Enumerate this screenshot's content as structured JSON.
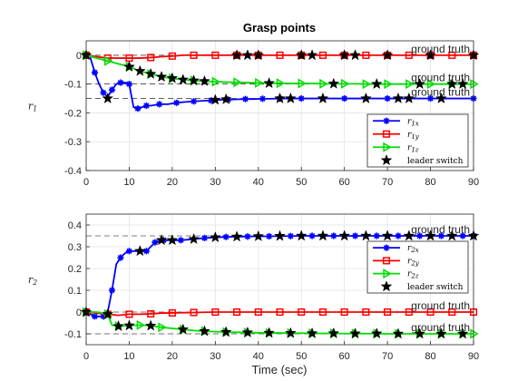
{
  "chart_data": [
    {
      "type": "line",
      "title": "Grasp points",
      "ylabel": "r1",
      "ylabel_main": "r",
      "ylabel_sub": "1",
      "xlabel": "",
      "xlim": [
        0,
        90
      ],
      "ylim": [
        -0.4,
        0.05
      ],
      "xticks": [
        0,
        10,
        20,
        30,
        40,
        50,
        60,
        70,
        80,
        90
      ],
      "yticks": [
        0,
        -0.1,
        -0.2,
        -0.3,
        -0.4
      ],
      "ytick_labels": [
        "0",
        "-0.1",
        "-0.2",
        "-0.3",
        "-0.4"
      ],
      "grid": true,
      "legend_position": "bottom-right",
      "reference_lines": [
        {
          "y": 0,
          "label": "ground truth"
        },
        {
          "y": -0.1,
          "label": "ground truth"
        },
        {
          "y": -0.15,
          "label": "ground truth"
        }
      ],
      "series": [
        {
          "name": "r1x",
          "legend_main": "r",
          "legend_sub": "1x",
          "color": "#0000ff",
          "marker": "asterisk",
          "x": [
            0,
            1,
            2,
            3,
            4,
            5,
            6,
            7,
            8,
            9,
            10,
            11,
            12,
            13,
            14,
            15,
            17,
            19,
            21,
            23,
            25,
            27,
            29,
            31,
            33,
            35,
            37,
            39,
            41,
            43,
            45,
            47,
            50,
            55,
            60,
            65,
            70,
            75,
            80,
            85,
            90
          ],
          "values": [
            0,
            -0.01,
            -0.06,
            -0.1,
            -0.13,
            -0.145,
            -0.12,
            -0.1,
            -0.095,
            -0.095,
            -0.1,
            -0.18,
            -0.185,
            -0.18,
            -0.175,
            -0.175,
            -0.17,
            -0.17,
            -0.165,
            -0.162,
            -0.16,
            -0.158,
            -0.157,
            -0.155,
            -0.154,
            -0.153,
            -0.152,
            -0.152,
            -0.151,
            -0.151,
            -0.15,
            -0.15,
            -0.15,
            -0.15,
            -0.15,
            -0.15,
            -0.15,
            -0.15,
            -0.15,
            -0.15,
            -0.15
          ]
        },
        {
          "name": "r1y",
          "legend_main": "r",
          "legend_sub": "1y",
          "color": "#ff0000",
          "marker": "square",
          "x": [
            0,
            2.5,
            5,
            7.5,
            10,
            12.5,
            15,
            17.5,
            20,
            22.5,
            25,
            27.5,
            30,
            32.5,
            35,
            37.5,
            40,
            42.5,
            45,
            47.5,
            50,
            52.5,
            55,
            57.5,
            60,
            62.5,
            65,
            67.5,
            70,
            72.5,
            75,
            77.5,
            80,
            82.5,
            85,
            87.5,
            90
          ],
          "values": [
            0,
            -0.005,
            -0.01,
            -0.01,
            -0.01,
            -0.01,
            -0.008,
            -0.005,
            -0.003,
            0,
            0,
            0,
            0,
            0,
            0,
            0,
            0,
            0,
            0,
            0,
            0,
            0,
            0,
            0,
            0,
            0,
            0,
            0,
            0,
            0,
            0,
            0,
            0,
            0,
            0,
            0,
            0
          ]
        },
        {
          "name": "r1z",
          "legend_main": "r",
          "legend_sub": "1z",
          "color": "#00dd00",
          "marker": "triangle-right",
          "x": [
            0,
            2.5,
            5,
            7.5,
            10,
            12.5,
            15,
            17.5,
            20,
            22.5,
            25,
            27.5,
            30,
            32.5,
            35,
            37.5,
            40,
            42.5,
            45,
            47.5,
            50,
            52.5,
            55,
            57.5,
            60,
            62.5,
            65,
            67.5,
            70,
            72.5,
            75,
            77.5,
            80,
            82.5,
            85,
            87.5,
            90
          ],
          "values": [
            0,
            -0.01,
            -0.02,
            -0.03,
            -0.04,
            -0.055,
            -0.065,
            -0.075,
            -0.08,
            -0.085,
            -0.088,
            -0.09,
            -0.092,
            -0.093,
            -0.094,
            -0.095,
            -0.096,
            -0.097,
            -0.097,
            -0.098,
            -0.098,
            -0.098,
            -0.099,
            -0.099,
            -0.099,
            -0.099,
            -0.1,
            -0.1,
            -0.1,
            -0.1,
            -0.1,
            -0.1,
            -0.1,
            -0.1,
            -0.1,
            -0.1,
            -0.1
          ]
        }
      ],
      "leader_switch": {
        "name": "leader switch",
        "x": [
          0,
          5,
          10,
          12.5,
          15,
          17.5,
          20,
          22.5,
          25,
          27.5,
          30,
          32.5,
          35,
          37.5,
          40,
          42.5,
          45,
          47.5,
          50,
          52.5,
          55,
          57.5,
          60,
          62.5,
          65,
          67.5,
          70,
          72.5,
          75,
          77.5,
          80,
          82.5,
          85,
          87.5,
          90
        ],
        "y": [
          0,
          -0.15,
          -0.04,
          -0.055,
          -0.065,
          -0.075,
          -0.08,
          -0.085,
          -0.088,
          -0.09,
          -0.155,
          -0.153,
          0,
          0,
          0,
          -0.097,
          -0.15,
          -0.15,
          0,
          0,
          -0.15,
          -0.099,
          0,
          0,
          -0.15,
          -0.1,
          0,
          -0.15,
          -0.15,
          -0.1,
          0,
          -0.15,
          -0.1,
          -0.1,
          0
        ]
      }
    },
    {
      "type": "line",
      "title": "",
      "ylabel": "r2",
      "ylabel_main": "r",
      "ylabel_sub": "2",
      "xlabel": "Time (sec)",
      "xlim": [
        0,
        90
      ],
      "ylim": [
        -0.15,
        0.45
      ],
      "xticks": [
        0,
        10,
        20,
        30,
        40,
        50,
        60,
        70,
        80,
        90
      ],
      "yticks": [
        0.4,
        0.3,
        0.2,
        0.1,
        0,
        -0.1
      ],
      "ytick_labels": [
        "0.4",
        "0.3",
        "0.2",
        "0.1",
        "0",
        "-0.1"
      ],
      "grid": true,
      "legend_position": "right",
      "reference_lines": [
        {
          "y": 0.35,
          "label": "ground truth"
        },
        {
          "y": 0,
          "label": "ground truth"
        },
        {
          "y": -0.1,
          "label": "ground truth"
        }
      ],
      "series": [
        {
          "name": "r2x",
          "legend_main": "r",
          "legend_sub": "2x",
          "color": "#0000ff",
          "marker": "asterisk",
          "x": [
            0,
            1,
            2,
            3,
            4,
            5,
            6,
            7,
            8,
            9,
            10,
            12,
            14,
            15,
            16,
            17,
            18,
            20,
            22,
            25,
            27.5,
            30,
            32.5,
            35,
            37.5,
            40,
            42.5,
            45,
            47.5,
            50,
            52.5,
            55,
            57.5,
            60,
            62.5,
            65,
            67.5,
            70,
            72.5,
            75,
            77.5,
            80,
            82.5,
            85,
            87.5,
            90
          ],
          "values": [
            0,
            -0.01,
            -0.02,
            -0.02,
            -0.02,
            0,
            0.1,
            0.22,
            0.25,
            0.27,
            0.28,
            0.28,
            0.28,
            0.3,
            0.32,
            0.325,
            0.33,
            0.33,
            0.33,
            0.335,
            0.34,
            0.343,
            0.345,
            0.346,
            0.347,
            0.348,
            0.348,
            0.349,
            0.349,
            0.35,
            0.35,
            0.35,
            0.35,
            0.35,
            0.35,
            0.35,
            0.35,
            0.35,
            0.35,
            0.35,
            0.35,
            0.35,
            0.35,
            0.35,
            0.35,
            0.35
          ]
        },
        {
          "name": "r2y",
          "legend_main": "r",
          "legend_sub": "2y",
          "color": "#ff0000",
          "marker": "square",
          "x": [
            0,
            2.5,
            5,
            7.5,
            10,
            12.5,
            15,
            17.5,
            20,
            22.5,
            25,
            27.5,
            30,
            32.5,
            35,
            37.5,
            40,
            42.5,
            45,
            47.5,
            50,
            52.5,
            55,
            57.5,
            60,
            62.5,
            65,
            67.5,
            70,
            72.5,
            75,
            77.5,
            80,
            82.5,
            85,
            87.5,
            90
          ],
          "values": [
            0,
            -0.005,
            -0.01,
            -0.015,
            -0.01,
            -0.01,
            -0.008,
            -0.005,
            -0.004,
            -0.003,
            -0.002,
            -0.001,
            0,
            0,
            0,
            0,
            0,
            0,
            0,
            0,
            0,
            0,
            0,
            0,
            0,
            0,
            0,
            0,
            0,
            0,
            0,
            0,
            0,
            0,
            0,
            0,
            0
          ]
        },
        {
          "name": "r2z",
          "legend_main": "r",
          "legend_sub": "2z",
          "color": "#00dd00",
          "marker": "triangle-right",
          "x": [
            0,
            2.5,
            5,
            6,
            7.5,
            10,
            12.5,
            15,
            17.5,
            20,
            22.5,
            25,
            27.5,
            30,
            32.5,
            35,
            37.5,
            40,
            42.5,
            45,
            47.5,
            50,
            52.5,
            55,
            57.5,
            60,
            62.5,
            65,
            67.5,
            70,
            72.5,
            75,
            77.5,
            80,
            82.5,
            85,
            87.5,
            90
          ],
          "values": [
            0,
            0,
            -0.01,
            -0.06,
            -0.065,
            -0.062,
            -0.06,
            -0.063,
            -0.07,
            -0.075,
            -0.08,
            -0.085,
            -0.088,
            -0.09,
            -0.092,
            -0.093,
            -0.094,
            -0.095,
            -0.096,
            -0.096,
            -0.097,
            -0.097,
            -0.098,
            -0.098,
            -0.098,
            -0.099,
            -0.099,
            -0.099,
            -0.099,
            -0.1,
            -0.1,
            -0.1,
            -0.1,
            -0.1,
            -0.1,
            -0.1,
            -0.1,
            -0.1
          ]
        }
      ],
      "leader_switch": {
        "name": "leader switch",
        "x": [
          0,
          5,
          7.5,
          10,
          12.5,
          15,
          17.5,
          20,
          22.5,
          25,
          27.5,
          30,
          32.5,
          35,
          37.5,
          40,
          42.5,
          45,
          47.5,
          50,
          52.5,
          55,
          57.5,
          60,
          62.5,
          65,
          67.5,
          70,
          72.5,
          75,
          77.5,
          80,
          82.5,
          85,
          87.5,
          90
        ],
        "y": [
          0,
          -0.01,
          -0.065,
          -0.062,
          0.28,
          -0.063,
          0.33,
          0.33,
          -0.08,
          0.335,
          -0.088,
          0.343,
          -0.092,
          0.346,
          -0.094,
          0.348,
          -0.096,
          0.349,
          -0.097,
          0.35,
          -0.098,
          0.35,
          -0.098,
          0.35,
          -0.099,
          0.35,
          -0.099,
          0.35,
          -0.1,
          0.35,
          -0.1,
          0.35,
          -0.1,
          0.35,
          -0.1,
          0.35
        ]
      }
    }
  ]
}
